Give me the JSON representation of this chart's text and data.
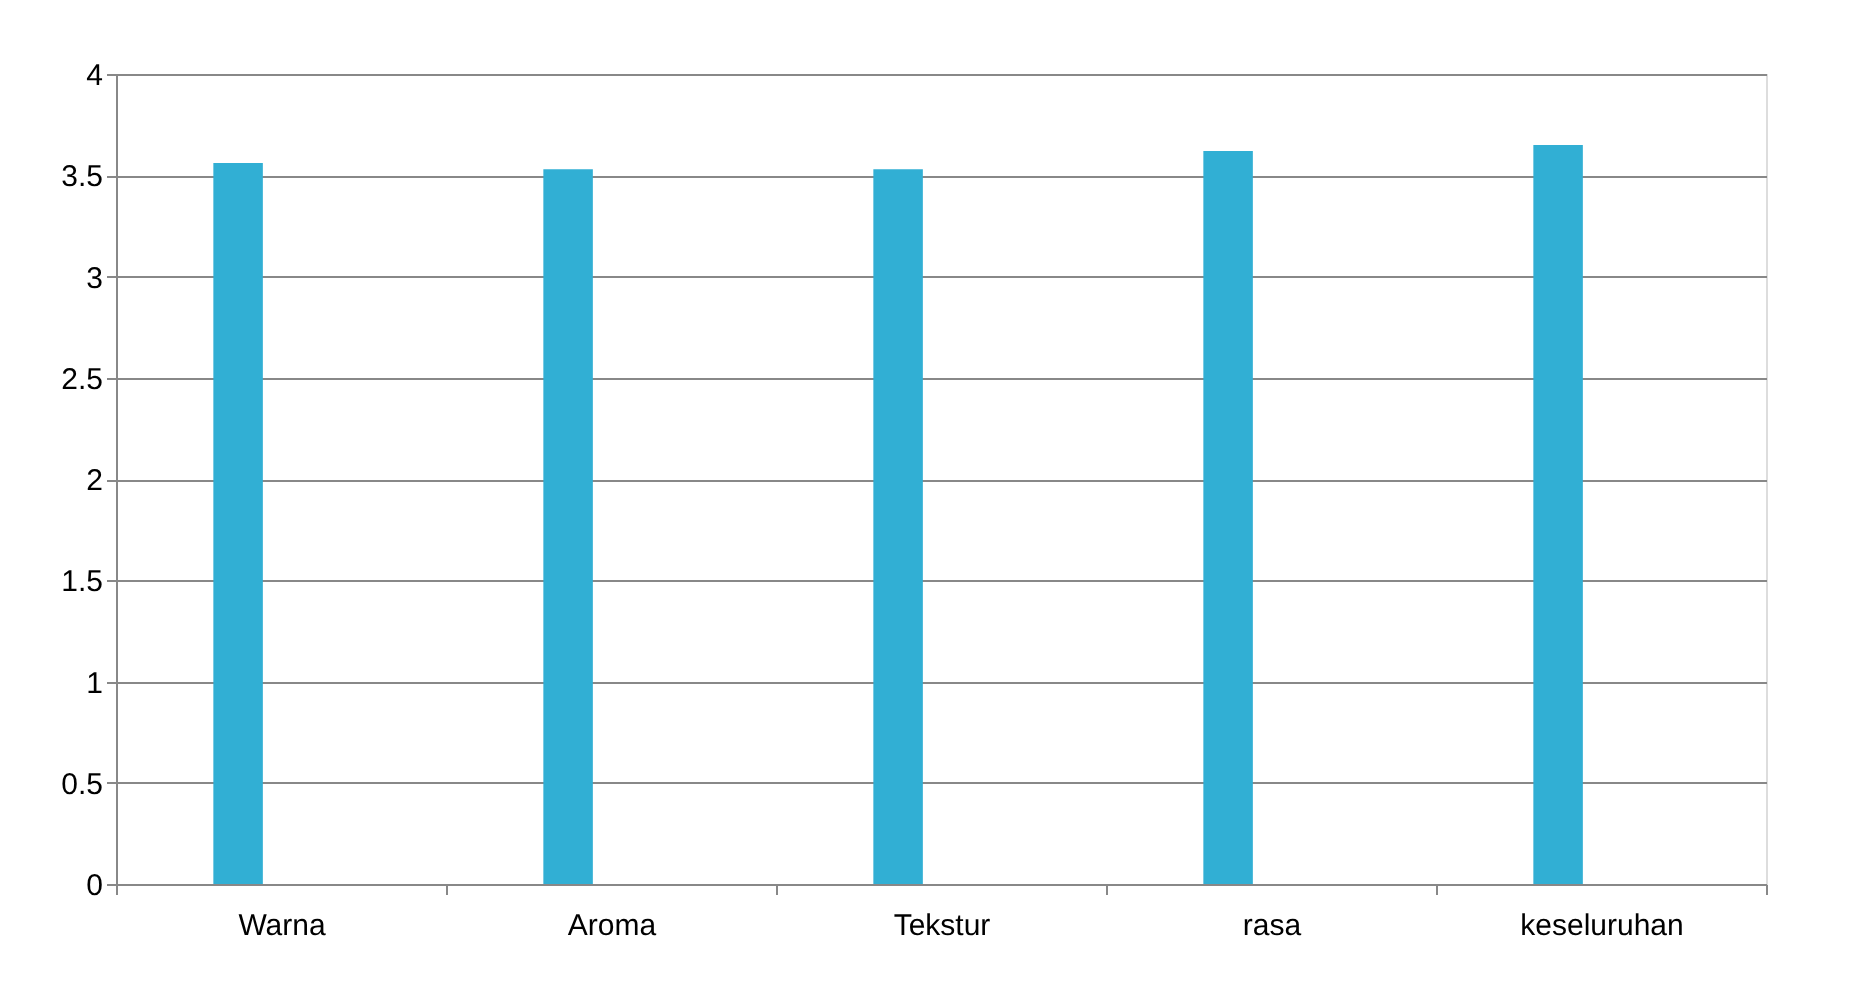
{
  "chart_data": {
    "type": "bar",
    "categories": [
      "Warna",
      "Aroma",
      "Tekstur",
      "rasa",
      "keseluruhan"
    ],
    "series": [
      {
        "color": "#31afd4",
        "values": [
          3.56,
          3.53,
          3.53,
          3.62,
          3.65
        ]
      }
    ],
    "ylim": [
      0,
      4
    ],
    "yticks": [
      0,
      0.5,
      1,
      1.5,
      2,
      2.5,
      3,
      3.5,
      4
    ],
    "grid": "y",
    "legend": false
  }
}
